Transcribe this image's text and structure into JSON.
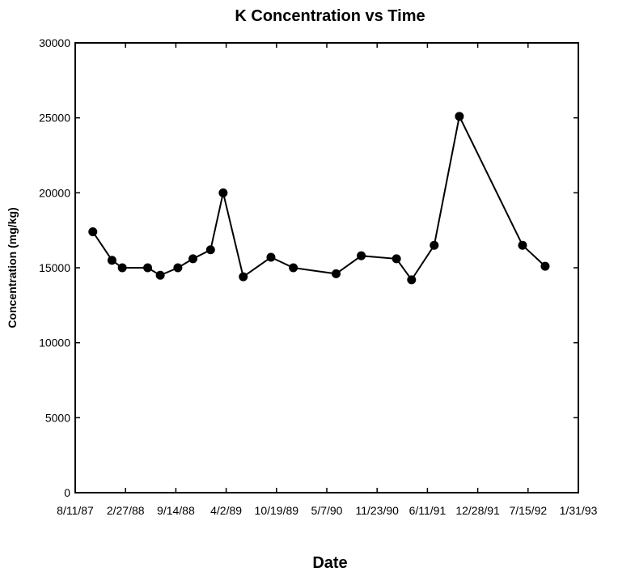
{
  "chart_data": {
    "type": "line",
    "title": "K Concentration vs Time",
    "xlabel": "Date",
    "ylabel": "Concentration (mg/kg)",
    "x_ticks": [
      "8/11/87",
      "2/27/88",
      "9/14/88",
      "4/2/89",
      "10/19/89",
      "5/7/90",
      "11/23/90",
      "6/11/91",
      "12/28/91",
      "7/15/92",
      "1/31/93"
    ],
    "y_ticks": [
      "0",
      "5000",
      "10000",
      "15000",
      "20000",
      "25000",
      "30000"
    ],
    "xlim": [
      "1987-08-11",
      "1993-01-31"
    ],
    "ylim": [
      0,
      30000
    ],
    "grid": false,
    "legend": "none",
    "series": [
      {
        "color": "#000000",
        "marker": "circle",
        "points": [
          {
            "x": "1987-10-20",
            "y": 17400
          },
          {
            "x": "1988-01-04",
            "y": 15500
          },
          {
            "x": "1988-02-14",
            "y": 15000
          },
          {
            "x": "1988-05-25",
            "y": 15000
          },
          {
            "x": "1988-07-14",
            "y": 14500
          },
          {
            "x": "1988-09-22",
            "y": 15000
          },
          {
            "x": "1988-11-21",
            "y": 15600
          },
          {
            "x": "1989-01-30",
            "y": 16200
          },
          {
            "x": "1989-03-21",
            "y": 20000
          },
          {
            "x": "1989-06-09",
            "y": 14400
          },
          {
            "x": "1989-09-27",
            "y": 15700
          },
          {
            "x": "1989-12-25",
            "y": 15000
          },
          {
            "x": "1990-06-13",
            "y": 14600
          },
          {
            "x": "1990-09-21",
            "y": 15800
          },
          {
            "x": "1991-02-08",
            "y": 15600
          },
          {
            "x": "1991-04-09",
            "y": 14200
          },
          {
            "x": "1991-07-08",
            "y": 16500
          },
          {
            "x": "1991-10-16",
            "y": 25100
          },
          {
            "x": "1992-06-23",
            "y": 16500
          },
          {
            "x": "1992-09-21",
            "y": 15100
          }
        ]
      }
    ]
  }
}
